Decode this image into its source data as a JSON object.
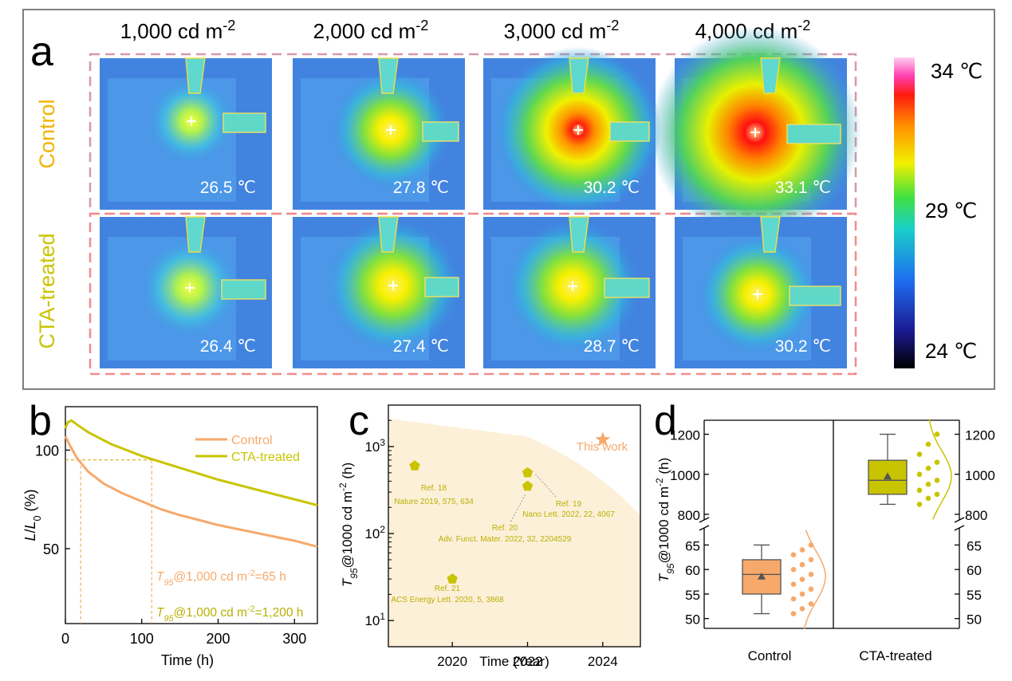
{
  "panel_a": {
    "label": "a",
    "columns": [
      "1,000 cd m",
      "2,000 cd m",
      "3,000 cd m",
      "4,000 cd m"
    ],
    "col_sup": "-2",
    "rows": [
      "Control",
      "CTA-treated"
    ],
    "temps": [
      [
        "26.5 ℃",
        "27.8 ℃",
        "30.2 ℃",
        "33.1 ℃"
      ],
      [
        "26.4 ℃",
        "27.4 ℃",
        "28.7 ℃",
        "30.2 ℃"
      ]
    ],
    "colorbar": {
      "max": "34 ℃",
      "mid": "29 ℃",
      "min": "24 ℃"
    },
    "colors": {
      "control": "#f0b400",
      "cta": "#c9c400",
      "frame": "#7f7f7f"
    }
  },
  "panel_b": {
    "label": "b"
  },
  "panel_c": {
    "label": "c"
  },
  "panel_d": {
    "label": "d"
  },
  "chart_data": [
    {
      "type": "line",
      "panel": "b",
      "xlabel": "Time (h)",
      "ylabel_parts": [
        "L",
        "/",
        "L",
        "0",
        " (%)"
      ],
      "xlim": [
        0,
        330
      ],
      "ylim": [
        12,
        122
      ],
      "xticks": [
        0,
        100,
        200,
        300
      ],
      "yticks": [
        50,
        100
      ],
      "series": [
        {
          "name": "Control",
          "color": "#f6a96b",
          "x": [
            0,
            5,
            15,
            30,
            50,
            75,
            100,
            125,
            150,
            200,
            250,
            300,
            330
          ],
          "y": [
            107,
            103,
            96,
            89,
            83,
            78,
            74,
            70,
            67,
            62,
            58,
            54,
            51
          ]
        },
        {
          "name": "CTA-treated",
          "color": "#c9c400",
          "x": [
            0,
            3,
            8,
            15,
            30,
            60,
            100,
            150,
            200,
            250,
            300,
            330
          ],
          "y": [
            111,
            114,
            115,
            113,
            109,
            103,
            97,
            91,
            85,
            80,
            75,
            72
          ]
        }
      ],
      "guides": {
        "y": 95,
        "x1": 20,
        "x2": 113
      },
      "annotations": [
        {
          "prefix": "T",
          "sub": "95",
          "text": "@1,000 cd m",
          "sup": "-2",
          "tail": "=65 h",
          "color": "#f6a96b"
        },
        {
          "prefix": "T",
          "sub": "95",
          "text": "@1,000 cd m",
          "sup": "-2",
          "tail": "=1,200 h",
          "color": "#b8b000"
        }
      ]
    },
    {
      "type": "scatter",
      "panel": "c",
      "xlabel": "Time (Year)",
      "ylabel_parts": [
        "T",
        "95",
        "@1000 cd m",
        "-2",
        " (h)"
      ],
      "xlim": [
        2018.3,
        2025
      ],
      "y_log": true,
      "ylim": [
        5,
        3000
      ],
      "xticks": [
        2020,
        2022,
        2024
      ],
      "ytick_exponents": [
        1,
        2,
        3
      ],
      "points": [
        {
          "x": 2019,
          "y": 600,
          "lines": [
            "Ref. 18",
            "Nature 2019, 575, 634"
          ]
        },
        {
          "x": 2022,
          "y": 500,
          "lines": [
            "Ref. 19",
            "Nano Lett. 2022, 22, 4067"
          ]
        },
        {
          "x": 2022,
          "y": 350,
          "lines": [
            "Ref. 20",
            "Adv. Funct. Mater. 2022, 32, 2204529"
          ]
        },
        {
          "x": 2020,
          "y": 30,
          "lines": [
            "Ref. 21",
            "ACS Energy Lett. 2020, 5, 3868"
          ]
        },
        {
          "x": 2024,
          "y": 1200,
          "lines": [
            "This work"
          ],
          "marker": "star"
        }
      ],
      "colors": {
        "points": "#c9c400",
        "star": "#f6a96b",
        "band": "#fdf0d8"
      }
    },
    {
      "type": "box",
      "panel": "d",
      "categories": [
        "Control",
        "CTA-treated"
      ],
      "ylabel_parts": [
        "T",
        "95",
        "@1000 cd m",
        "-2",
        " (h)"
      ],
      "y_break": {
        "lower": [
          48,
          68
        ],
        "upper": [
          780,
          1270
        ]
      },
      "lower_ticks": [
        50,
        55,
        60,
        65
      ],
      "upper_ticks": [
        800,
        1000,
        1200
      ],
      "boxes": [
        {
          "name": "Control",
          "min": 51,
          "q1": 55,
          "median": 59,
          "q3": 62,
          "max": 65,
          "mean": 58.6,
          "color": "#f6a96b",
          "points": [
            51,
            52,
            53,
            54,
            55,
            56,
            57,
            58,
            59,
            60,
            61,
            62,
            63,
            64,
            65
          ]
        },
        {
          "name": "CTA-treated",
          "min": 850,
          "q1": 900,
          "median": 970,
          "q3": 1070,
          "max": 1200,
          "mean": 990,
          "color": "#c9c400",
          "points": [
            850,
            880,
            900,
            920,
            950,
            970,
            1000,
            1030,
            1060,
            1100,
            1150,
            1200
          ]
        }
      ]
    }
  ]
}
